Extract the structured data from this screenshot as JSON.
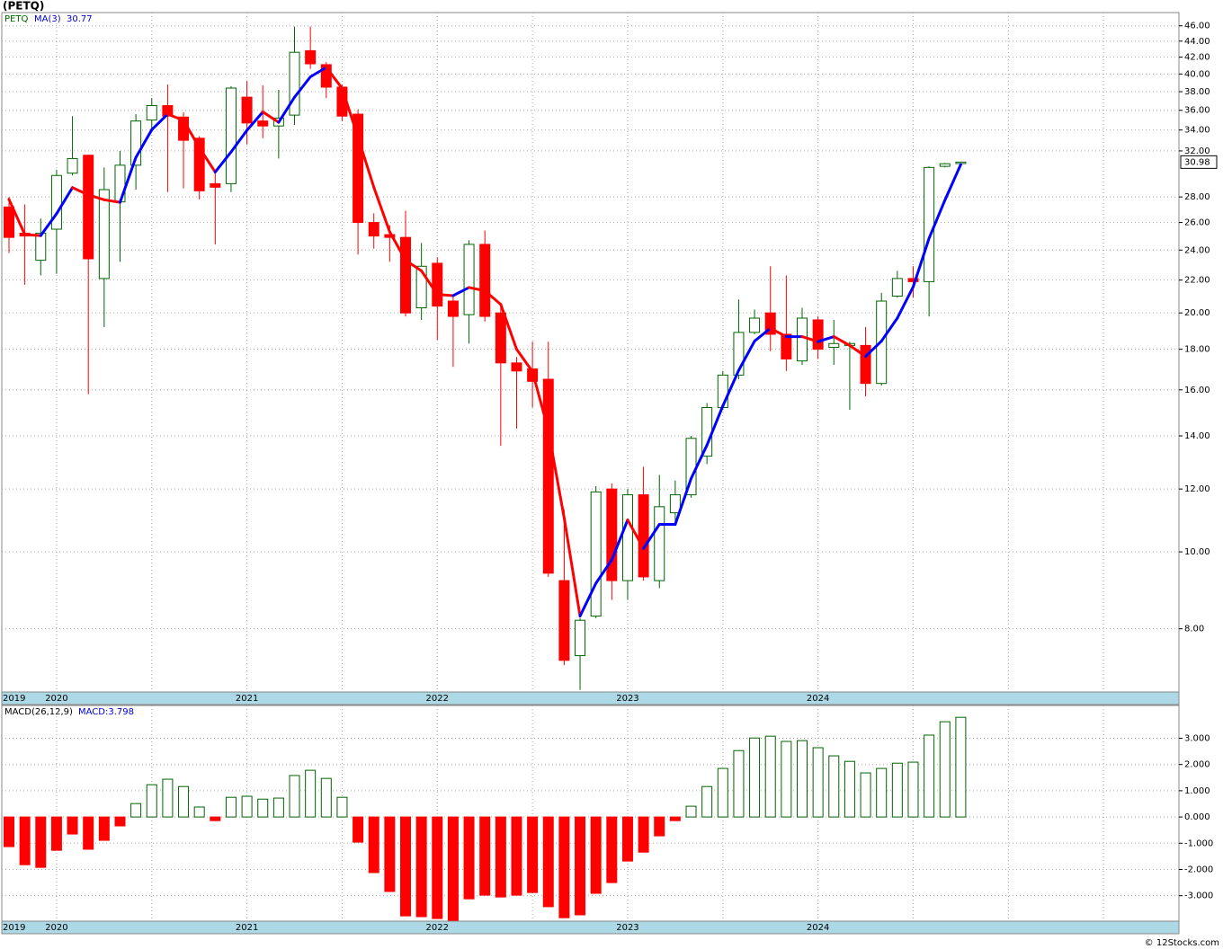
{
  "title": "(PETQ)",
  "footer": "© 12Stocks.com",
  "chart_data": [
    {
      "type": "candlestick",
      "name": "PETQ",
      "log_scale": true,
      "grid": true,
      "up_color": "#006400",
      "down_color": "#ff0000",
      "categories": [
        "2019",
        null,
        null,
        "2020",
        null,
        null,
        null,
        null,
        null,
        null,
        null,
        null,
        null,
        null,
        null,
        "2021",
        null,
        null,
        null,
        null,
        null,
        null,
        null,
        null,
        null,
        null,
        null,
        "2022",
        null,
        null,
        null,
        null,
        null,
        null,
        null,
        null,
        null,
        null,
        null,
        "2023",
        null,
        null,
        null,
        null,
        null,
        null,
        null,
        null,
        null,
        null,
        null,
        "2024",
        null,
        null,
        null,
        null,
        null,
        null,
        null,
        null,
        null
      ],
      "open": [
        27.2,
        25.2,
        23.3,
        25.5,
        30,
        31.6,
        22.1,
        27.6,
        30.7,
        35,
        36.5,
        35.3,
        33.2,
        29.1,
        29.1,
        37.4,
        34.9,
        34.4,
        35.5,
        42.8,
        41.1,
        38.5,
        35.6,
        26,
        25.1,
        24.9,
        20.3,
        23.1,
        20.7,
        19.9,
        24.4,
        20,
        17.3,
        17,
        16.5,
        9.2,
        7.4,
        8.3,
        12,
        9.2,
        11.8,
        9.2,
        11.2,
        11.8,
        13.2,
        15.2,
        16.7,
        18.9,
        20,
        18.8,
        17.4,
        19.6,
        18.1,
        18.2,
        18.2,
        16.3,
        21,
        22.1,
        21.9,
        30.6,
        30.85
      ],
      "high": [
        28,
        27.4,
        26.3,
        30.3,
        35.4,
        31.6,
        30.5,
        32,
        35.6,
        37.3,
        38.8,
        35.8,
        33.4,
        30.1,
        38.6,
        39.2,
        38.7,
        38.2,
        45.9,
        45.9,
        41.4,
        38.8,
        36.1,
        26.7,
        25.8,
        26.9,
        24.5,
        23.5,
        21,
        24.7,
        25.4,
        20.4,
        17.6,
        18.4,
        18.4,
        11.3,
        8.25,
        12.1,
        12.2,
        12,
        12.8,
        12.5,
        12.3,
        14,
        15.4,
        16.9,
        20.8,
        20.2,
        22.9,
        22.3,
        20.3,
        19.8,
        19.6,
        18.4,
        19.2,
        21.2,
        22.6,
        22.9,
        30.6,
        30.9,
        31
      ],
      "low": [
        23.8,
        21.7,
        22.3,
        22.4,
        29.8,
        15.8,
        19.2,
        23.2,
        28.6,
        33.8,
        28.4,
        28.7,
        27.8,
        24.4,
        28.4,
        32.6,
        33.2,
        31.3,
        34.5,
        40.6,
        37.3,
        34.9,
        23.7,
        24.1,
        23.2,
        19.8,
        19.6,
        18.5,
        17.1,
        18.3,
        19.5,
        13.6,
        14.3,
        15.2,
        9.3,
        7.2,
        6.7,
        8.25,
        8.7,
        8.7,
        9.2,
        9,
        10.9,
        11.7,
        12.9,
        15.1,
        16.5,
        18.8,
        17.9,
        16.9,
        17.2,
        17.5,
        17.2,
        15.1,
        15.7,
        16.2,
        20.9,
        20.9,
        19.8,
        30.5,
        30.8
      ],
      "close": [
        24.9,
        25,
        25.2,
        29.8,
        31.3,
        23.4,
        28.6,
        30.7,
        34.9,
        36.5,
        35.4,
        33,
        28.5,
        28.8,
        38.4,
        34.7,
        34.4,
        35.2,
        42.6,
        41.2,
        38.5,
        35.4,
        26,
        25,
        24.9,
        20,
        22.9,
        20.4,
        19.8,
        24.4,
        19.8,
        17.3,
        16.9,
        16.4,
        9.4,
        7.3,
        8.2,
        11.9,
        9.2,
        11.8,
        9.3,
        11.4,
        11.8,
        13.9,
        15.2,
        16.7,
        18.9,
        19.7,
        18.8,
        17.5,
        19.7,
        18,
        18.3,
        18.3,
        16.3,
        20.7,
        22.1,
        21.9,
        30.5,
        30.83,
        30.98
      ],
      "ma": {
        "name": "MA(3)",
        "up_color": "#0000ff",
        "down_color": "#ff0000",
        "values": [
          27.8,
          25.1,
          25.03,
          26.67,
          28.77,
          28.17,
          27.77,
          27.57,
          31.4,
          34.03,
          35.6,
          34.97,
          32.3,
          30.1,
          31.9,
          33.97,
          35.83,
          34.77,
          37.4,
          39.67,
          40.77,
          38.37,
          33.3,
          28.8,
          25.3,
          23.3,
          22.6,
          21.1,
          21.03,
          21.53,
          21.33,
          20.5,
          18,
          16.87,
          14.23,
          11.03,
          8.3,
          9.13,
          9.77,
          10.97,
          10.1,
          10.83,
          10.83,
          12.37,
          13.63,
          15.27,
          16.93,
          18.43,
          19.13,
          18.67,
          18.67,
          18.4,
          18.67,
          18.2,
          17.63,
          18.43,
          19.7,
          21.57,
          24.83,
          27.74,
          30.77
        ]
      },
      "ylim": [
        6.66,
        47.8
      ],
      "yticks": [
        {
          "value": 8,
          "label": "8.00"
        },
        {
          "value": 10,
          "label": "10.00"
        },
        {
          "value": 12,
          "label": "12.00"
        },
        {
          "value": 14,
          "label": "14.00"
        },
        {
          "value": 16,
          "label": "16.00"
        },
        {
          "value": 18,
          "label": "18.00"
        },
        {
          "value": 20,
          "label": "20.00"
        },
        {
          "value": 22,
          "label": "22.00"
        },
        {
          "value": 24,
          "label": "24.00"
        },
        {
          "value": 26,
          "label": "26.00"
        },
        {
          "value": 28,
          "label": "28.00"
        },
        {
          "value": 32,
          "label": "32.00"
        },
        {
          "value": 34,
          "label": "34.00"
        },
        {
          "value": 36,
          "label": "36.00"
        },
        {
          "value": 38,
          "label": "38.00"
        },
        {
          "value": 40,
          "label": "40.00"
        },
        {
          "value": 42,
          "label": "42.00"
        },
        {
          "value": 44,
          "label": "44.00"
        },
        {
          "value": 46,
          "label": "46.00"
        }
      ]
    },
    {
      "type": "bar",
      "name": "MACD(26,12,9)",
      "legend_label": "MACD:3.798",
      "grid": true,
      "up_color": "#006400",
      "down_color": "#ff0000",
      "categories": [
        "2019",
        null,
        null,
        "2020",
        null,
        null,
        null,
        null,
        null,
        null,
        null,
        null,
        null,
        null,
        null,
        "2021",
        null,
        null,
        null,
        null,
        null,
        null,
        null,
        null,
        null,
        null,
        null,
        "2022",
        null,
        null,
        null,
        null,
        null,
        null,
        null,
        null,
        null,
        null,
        null,
        "2023",
        null,
        null,
        null,
        null,
        null,
        null,
        null,
        null,
        null,
        null,
        null,
        "2024",
        null,
        null,
        null,
        null,
        null,
        null,
        null,
        null,
        null
      ],
      "values": [
        -1.13,
        -1.82,
        -1.92,
        -1.27,
        -0.65,
        -1.23,
        -0.89,
        -0.34,
        0.51,
        1.23,
        1.44,
        1.16,
        0.38,
        -0.14,
        0.75,
        0.79,
        0.68,
        0.72,
        1.58,
        1.78,
        1.47,
        0.75,
        -0.96,
        -2.12,
        -2.84,
        -3.77,
        -3.8,
        -3.87,
        -3.94,
        -3.12,
        -2.98,
        -3.05,
        -2.98,
        -2.88,
        -3.42,
        -3.84,
        -3.73,
        -2.91,
        -2.5,
        -1.68,
        -1.34,
        -0.72,
        -0.14,
        0.41,
        1.16,
        1.85,
        2.53,
        3.01,
        3.08,
        2.88,
        2.91,
        2.64,
        2.33,
        2.12,
        1.68,
        1.85,
        2.05,
        2.09,
        3.12,
        3.63,
        3.798
      ],
      "ylim": [
        -3.97,
        4.25
      ],
      "yticks": [
        {
          "value": 3,
          "label": "3.000"
        },
        {
          "value": 2,
          "label": "2.000"
        },
        {
          "value": 1,
          "label": "1.000"
        },
        {
          "value": 0,
          "label": "0.000"
        },
        {
          "value": -1,
          "label": "-1.000"
        },
        {
          "value": -2,
          "label": "-2.000"
        },
        {
          "value": -3,
          "label": "-3.000"
        }
      ]
    }
  ]
}
